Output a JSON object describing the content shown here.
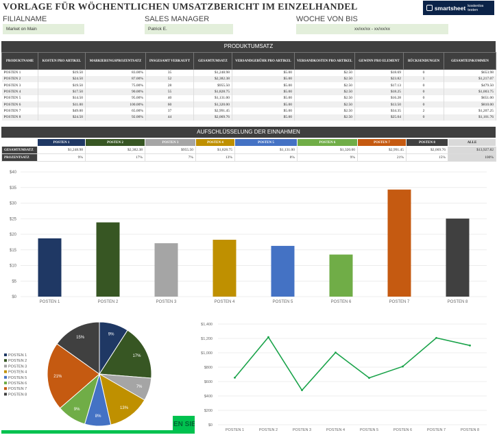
{
  "title": "VORLAGE FÜR WÖCHENTLICHEN UMSATZBERICHT IM EINZELHANDEL",
  "logo": {
    "brand": "smartsheet",
    "cta": "kostenlos testen"
  },
  "header": {
    "store_label": "FILIALNAME",
    "store_value": "Market on Main",
    "manager_label": "SALES MANAGER",
    "manager_value": "Patrick E.",
    "week_label": "WOCHE VON BIS",
    "week_value": "xx/xx/xx - xx/xx/xx"
  },
  "product_section": {
    "title": "PRODUKTUMSATZ",
    "columns": [
      "PRODUKTNAME",
      "KOSTEN PRO ARTIKEL",
      "MARKIERUNGSPROZENTSATZ",
      "INSGESAMT VERKAUFT",
      "GESAMTUMSATZ",
      "VERSANDGEBÜHR PRO ARTIKEL",
      "VERSANDKOSTEN PRO ARTIKEL",
      "GEWINN PRO ELEMENT",
      "RÜCKSENDUNGEN",
      "GESAMTEINKOMMEN"
    ],
    "rows": [
      [
        "POSTEN 1",
        "$19.50",
        "83.00%",
        "35",
        "$1,248.98",
        "$5.00",
        "$2.50",
        "$18.69",
        "0",
        "$653.98"
      ],
      [
        "POSTEN 2",
        "$24.50",
        "87.00%",
        "52",
        "$2,382.38",
        "$5.00",
        "$2.50",
        "$23.82",
        "1",
        "$1,217.07"
      ],
      [
        "POSTEN 3",
        "$19.50",
        "75.00%",
        "28",
        "$955.50",
        "$5.00",
        "$2.50",
        "$17.13",
        "0",
        "$479.50"
      ],
      [
        "POSTEN 4",
        "$17.50",
        "90.00%",
        "55",
        "$1,828.75",
        "$5.00",
        "$2.50",
        "$18.25",
        "0",
        "$1,003.75"
      ],
      [
        "POSTEN 5",
        "$14.50",
        "95.00%",
        "40",
        "$1,131.00",
        "$5.00",
        "$2.50",
        "$16.28",
        "0",
        "$651.00"
      ],
      [
        "POSTEN 6",
        "$11.00",
        "100.00%",
        "60",
        "$1,320.00",
        "$5.00",
        "$2.50",
        "$13.50",
        "0",
        "$810.00"
      ],
      [
        "POSTEN 7",
        "$49.00",
        "65.00%",
        "37",
        "$2,991.45",
        "$5.00",
        "$2.50",
        "$34.35",
        "2",
        "$1,207.25"
      ],
      [
        "POSTEN 8",
        "$24.50",
        "92.00%",
        "44",
        "$2,069.76",
        "$5.00",
        "$2.50",
        "$25.04",
        "0",
        "$1,101.76"
      ]
    ]
  },
  "breakdown_section": {
    "title": "AUFSCHLÜSSELUNG DER EINNAHMEN",
    "columns": [
      "POSTEN 1",
      "POSTEN 2",
      "POSTEN 3",
      "POSTEN 4",
      "POSTEN 5",
      "POSTEN 6",
      "POSTEN 7",
      "POSTEN 8"
    ],
    "all_label": "ALLE",
    "row_labels": [
      "GESAMTUMSATZ",
      "PROZENTSATZ"
    ],
    "totals": [
      "$1,248.98",
      "$2,382.38",
      "$955.50",
      "$1,828.75",
      "$1,131.00",
      "$1,320.00",
      "$2,991.45",
      "$2,069.76"
    ],
    "total_all": "$13,927.82",
    "percents": [
      "9%",
      "17%",
      "7%",
      "13%",
      "8%",
      "9%",
      "21%",
      "15%"
    ],
    "percent_all": "100%"
  },
  "colors": [
    "#1f3864",
    "#375623",
    "#a5a5a5",
    "#bf9000",
    "#4472c4",
    "#70ad47",
    "#c55a11",
    "#404040"
  ],
  "chart_data": [
    {
      "type": "bar",
      "categories": [
        "POSTEN 1",
        "POSTEN 2",
        "POSTEN 3",
        "POSTEN 4",
        "POSTEN 5",
        "POSTEN 6",
        "POSTEN 7",
        "POSTEN 8"
      ],
      "values": [
        18.69,
        23.82,
        17.13,
        18.25,
        16.28,
        13.5,
        34.35,
        25.04
      ],
      "ylim": [
        0,
        40
      ],
      "yticks": [
        "$0",
        "$5",
        "$10",
        "$15",
        "$20",
        "$25",
        "$30",
        "$35",
        "$40"
      ],
      "grid": true
    },
    {
      "type": "pie",
      "categories": [
        "POSTEN 1",
        "POSTEN 2",
        "POSTEN 3",
        "POSTEN 4",
        "POSTEN 5",
        "POSTEN 6",
        "POSTEN 7",
        "POSTEN 8"
      ],
      "values": [
        9,
        17,
        7,
        13,
        8,
        9,
        21,
        15
      ],
      "labels": [
        "9%",
        "17%",
        "7%",
        "13%",
        "8%",
        "9%",
        "21%",
        "15%"
      ],
      "legend": "left"
    },
    {
      "type": "line",
      "categories": [
        "POSTEN 1",
        "POSTEN 2",
        "POSTEN 3",
        "POSTEN 4",
        "POSTEN 5",
        "POSTEN 6",
        "POSTEN 7",
        "POSTEN 8"
      ],
      "values": [
        653.98,
        1217.07,
        479.5,
        1003.75,
        651.0,
        810.0,
        1207.25,
        1101.76
      ],
      "ylim": [
        0,
        1400
      ],
      "yticks": [
        "$0",
        "$200",
        "$400",
        "$600",
        "$800",
        "$1,000",
        "$1,200",
        "$1,400"
      ],
      "grid": true,
      "line_color": "#1aa34a"
    }
  ],
  "cta_text": "EN SIE"
}
